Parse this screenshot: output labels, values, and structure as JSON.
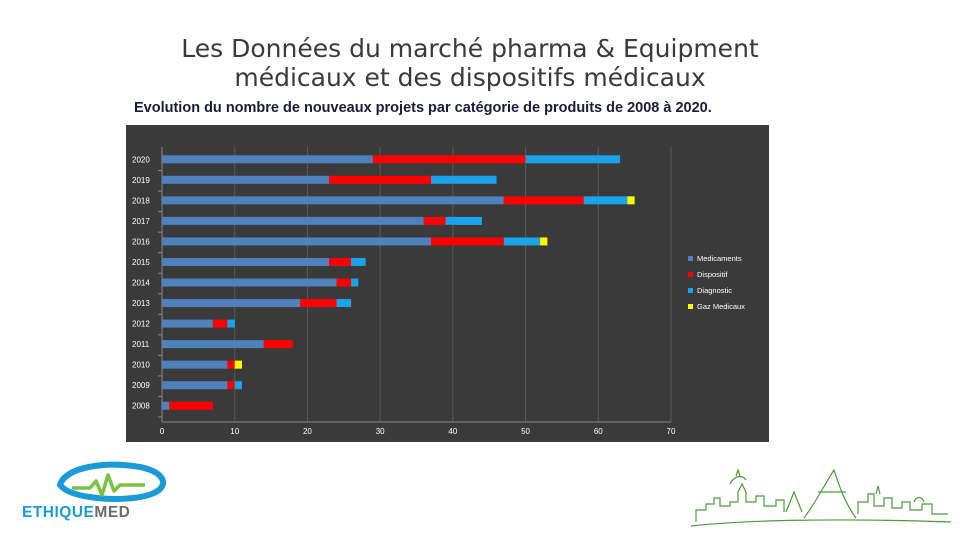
{
  "page": {
    "title_line1": "Les Données du  marché pharma & Equipment",
    "title_line2": "médicaux et des dispositifs médicaux",
    "subtitle": "Evolution du nombre de nouveaux projets par catégorie de produits de 2008  à 2020."
  },
  "logo": {
    "brand_a": "ETHIQUE",
    "brand_b": "MED"
  },
  "chart_data": {
    "type": "bar",
    "orientation": "horizontal",
    "stacked": true,
    "title": "Evolution du nombre de nouveaux projets par catégorie de produits de 2008  à 2020.",
    "categories": [
      "2020",
      "2019",
      "2018",
      "2017",
      "2016",
      "2015",
      "2014",
      "2013",
      "2012",
      "2011",
      "2010",
      "2009",
      "2008"
    ],
    "series": [
      {
        "name": "Medicaments",
        "color": "#4f81bd",
        "values": [
          29,
          23,
          47,
          36,
          37,
          23,
          24,
          19,
          7,
          14,
          9,
          9,
          1
        ]
      },
      {
        "name": "Dispositif",
        "color": "#ff0000",
        "values": [
          21,
          14,
          11,
          3,
          10,
          3,
          2,
          5,
          2,
          4,
          1,
          1,
          6
        ]
      },
      {
        "name": "Diagnostic",
        "color": "#1aa3e8",
        "values": [
          13,
          9,
          6,
          5,
          5,
          2,
          1,
          2,
          1,
          0,
          0,
          1,
          0
        ]
      },
      {
        "name": "Gaz Medicaux",
        "color": "#ffff00",
        "values": [
          0,
          0,
          1,
          0,
          1,
          0,
          0,
          0,
          0,
          0,
          1,
          0,
          0
        ]
      }
    ],
    "xlim": [
      0,
      70
    ],
    "xticks": [
      "0",
      "10",
      "20",
      "30",
      "40",
      "50",
      "60",
      "70"
    ],
    "legend_position": "right",
    "background": "#3a3a3a"
  }
}
